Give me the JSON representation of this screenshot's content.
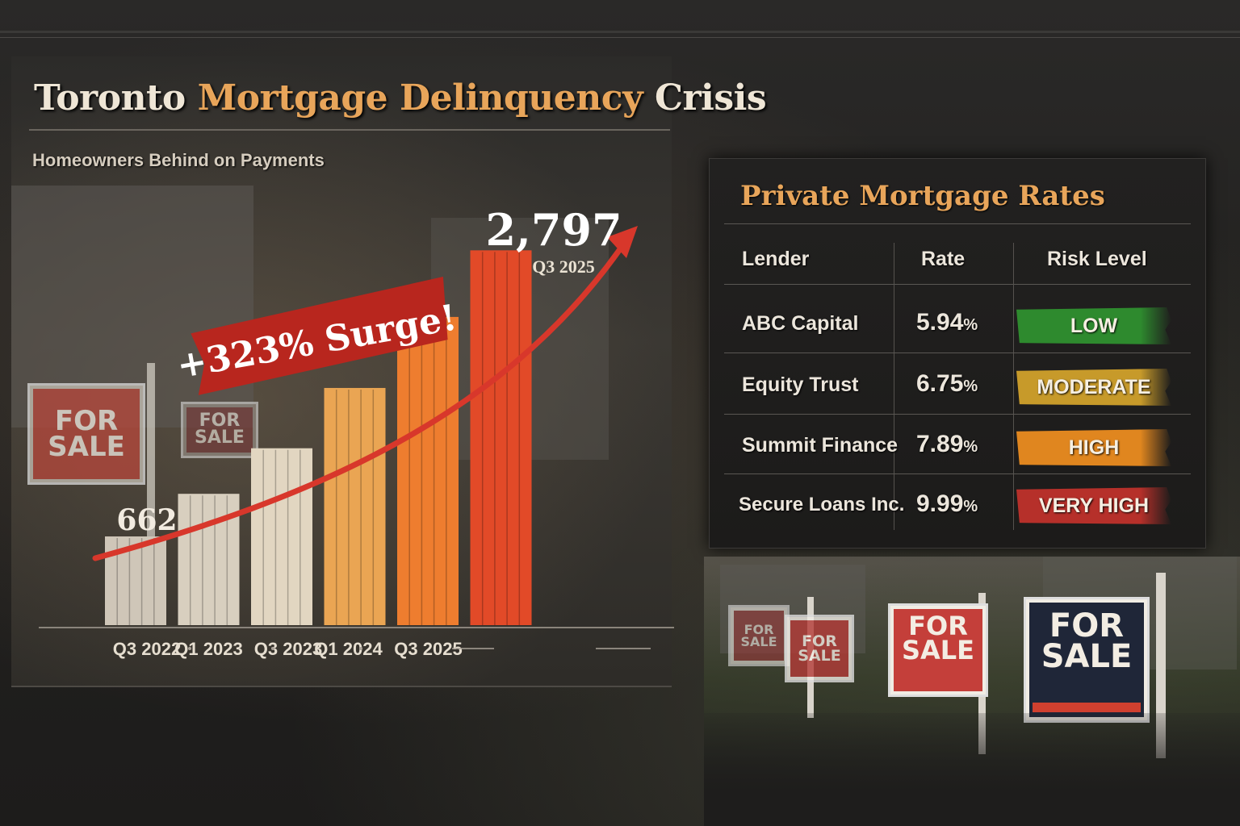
{
  "title": {
    "part1": "Toronto",
    "part2": "Mortgage Delinquency",
    "part3": "Crisis"
  },
  "subtitle": "Homeowners Behind on Payments",
  "colors": {
    "accent": "#e8a55a",
    "arrow": "#d8372b",
    "risk_low": "#2e8a2e",
    "risk_moderate": "#c79a2a",
    "risk_high": "#e0861f",
    "risk_very_high": "#b6302a"
  },
  "chart_data": {
    "type": "bar",
    "title": "Homeowners Behind on Payments",
    "categories": [
      "Q3 2022",
      "Q1 2023",
      "Q3 2023",
      "Q1 2024",
      "",
      "Q3 2025"
    ],
    "x_tick_labels": [
      "Q3 2022",
      "Q1 2023",
      "Q3 2023",
      "Q1 2024",
      "Q3 2025"
    ],
    "values": [
      662,
      980,
      1320,
      1770,
      2300,
      2797
    ],
    "bar_colors": [
      "#cfc6b8",
      "#d8cfbf",
      "#e2d6c1",
      "#eaa553",
      "#ee7d2f",
      "#e24a28"
    ],
    "ylim": [
      0,
      3100
    ],
    "data_labels": [
      {
        "value": "662",
        "bar": 0
      },
      {
        "value": "2,797",
        "sub": "Q3 2025",
        "bar": 5
      }
    ],
    "annotation": "+323% Surge!",
    "trend_arrow": true,
    "xlabel": "",
    "ylabel": "",
    "grid": false
  },
  "table": {
    "title": "Private Mortgage Rates",
    "headers": [
      "Lender",
      "Rate",
      "Risk Level"
    ],
    "rows": [
      {
        "lender": "ABC Capital",
        "rate": "5.94",
        "unit": "%",
        "risk": "LOW",
        "risk_color": "#2e8a2e"
      },
      {
        "lender": "Equity Trust",
        "rate": "6.75",
        "unit": "%",
        "risk": "MODERATE",
        "risk_color": "#c79a2a"
      },
      {
        "lender": "Summit Finance",
        "rate": "7.89",
        "unit": "%",
        "risk": "HIGH",
        "risk_color": "#e0861f"
      },
      {
        "lender": "Secure Loans Inc.",
        "rate": "9.99",
        "unit": "%",
        "risk": "VERY HIGH",
        "risk_color": "#b6302a"
      }
    ]
  },
  "signs": [
    {
      "line1": "FOR",
      "line2": "SALE"
    },
    {
      "line1": "FOR",
      "line2": "SALE"
    },
    {
      "line1": "FOR",
      "line2": "SALE"
    },
    {
      "line1": "FOR",
      "line2": "SALE"
    },
    {
      "line1": "FOR",
      "line2": "SALE"
    },
    {
      "line1": "FOR",
      "line2": "SALE"
    }
  ]
}
